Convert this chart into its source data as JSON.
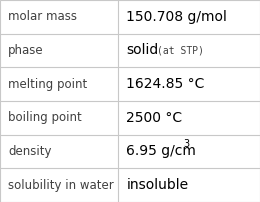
{
  "rows": [
    {
      "label": "molar mass",
      "value": "150.708 g/mol",
      "type": "plain"
    },
    {
      "label": "phase",
      "value": "solid",
      "sub": "(at STP)",
      "type": "phase"
    },
    {
      "label": "melting point",
      "value": "1624.85 °C",
      "type": "plain"
    },
    {
      "label": "boiling point",
      "value": "2500 °C",
      "type": "plain"
    },
    {
      "label": "density",
      "value": "6.95 g/cm",
      "super": "3",
      "type": "super"
    },
    {
      "label": "solubility in water",
      "value": "insoluble",
      "type": "plain"
    }
  ],
  "n_rows": 6,
  "col_split": 0.455,
  "bg_color": "#ffffff",
  "border_color": "#c8c8c8",
  "label_color": "#404040",
  "value_color": "#000000",
  "label_fontsize": 8.5,
  "value_fontsize": 10.0,
  "sub_fontsize": 7.0,
  "super_fontsize": 7.0
}
